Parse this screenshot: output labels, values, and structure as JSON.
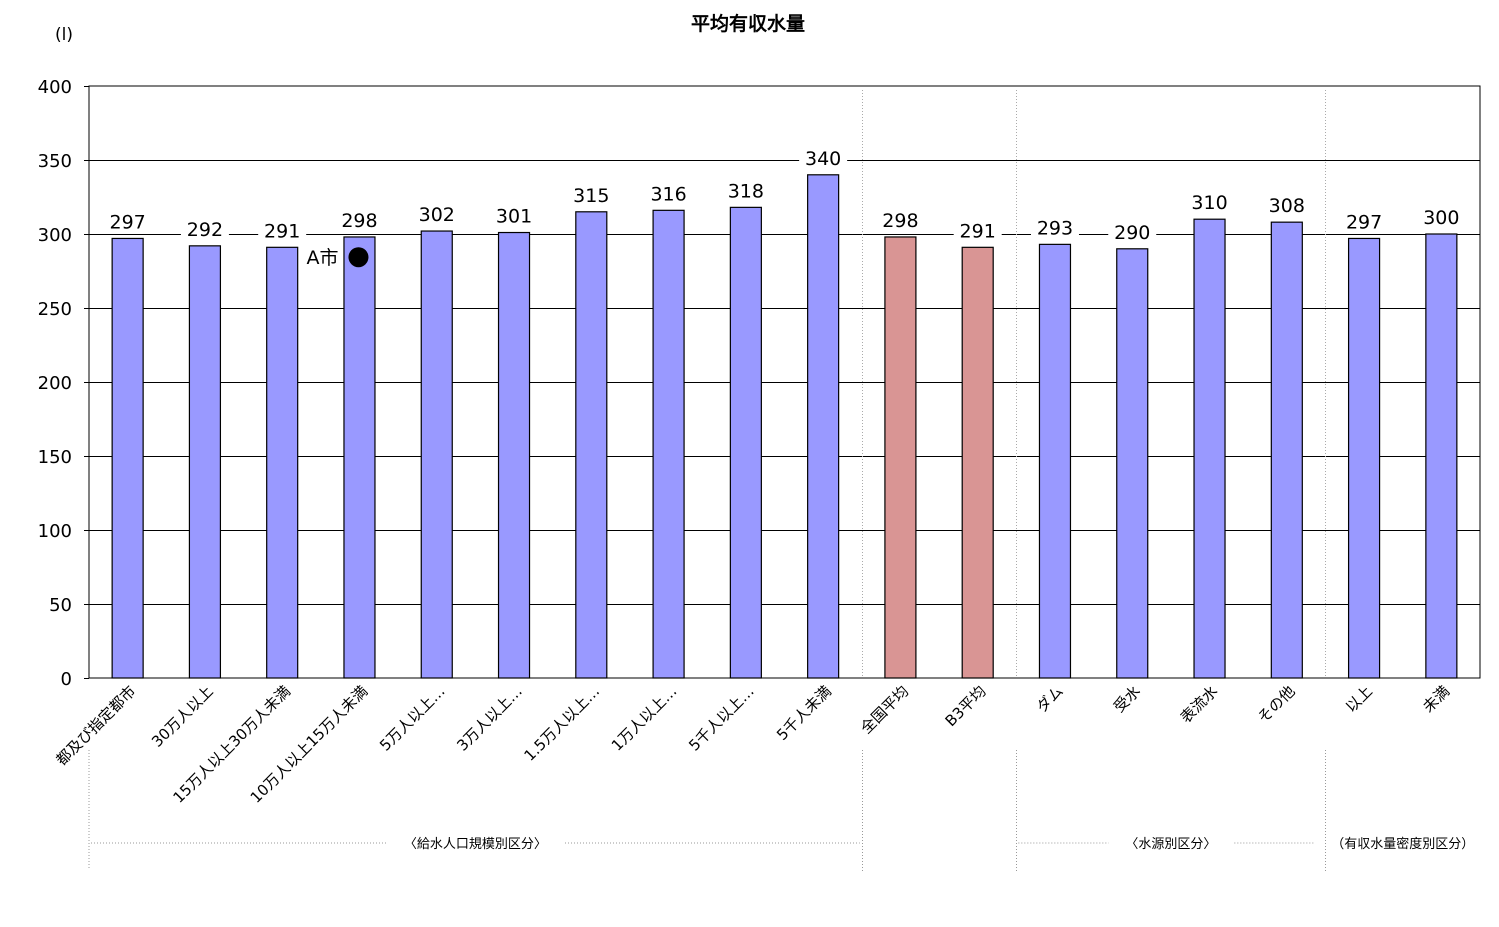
{
  "chart_data": {
    "type": "bar",
    "title": "平均有収水量",
    "unit_label": "(l)",
    "ylim": [
      0,
      400
    ],
    "yticks": [
      0,
      50,
      100,
      150,
      200,
      250,
      300,
      350,
      400
    ],
    "categories": [
      "都及び指定都市",
      "30万人以上",
      "15万人以上30万人未満",
      "10万人以上15万人未満",
      "5万人以上…",
      "3万人以上…",
      "1.5万人以上…",
      "1万人以上…",
      "5千人以上…",
      "5千人未満",
      "全国平均",
      "B3平均",
      "ダム",
      "受水",
      "表流水",
      "その他",
      "以上",
      "未満"
    ],
    "values": [
      297,
      292,
      291,
      298,
      302,
      301,
      315,
      316,
      318,
      340,
      298,
      291,
      293,
      290,
      310,
      308,
      297,
      300
    ],
    "bar_colors": [
      "#9999ff",
      "#9999ff",
      "#9999ff",
      "#9999ff",
      "#9999ff",
      "#9999ff",
      "#9999ff",
      "#9999ff",
      "#9999ff",
      "#9999ff",
      "#d99594",
      "#d99594",
      "#9999ff",
      "#9999ff",
      "#9999ff",
      "#9999ff",
      "#9999ff",
      "#9999ff"
    ],
    "groups": [
      {
        "label": "〈給水人口規模別区分〉",
        "from": 0,
        "to": 9
      },
      {
        "label": "",
        "from": 10,
        "to": 11
      },
      {
        "label": "〈水源別区分〉",
        "from": 12,
        "to": 15
      },
      {
        "label": "（有収水量密度別区分）",
        "from": 16,
        "to": 17
      }
    ],
    "annotation": {
      "label": "A市",
      "category_index": 3,
      "value": 285,
      "marker": "black-circle"
    },
    "grid": true
  }
}
